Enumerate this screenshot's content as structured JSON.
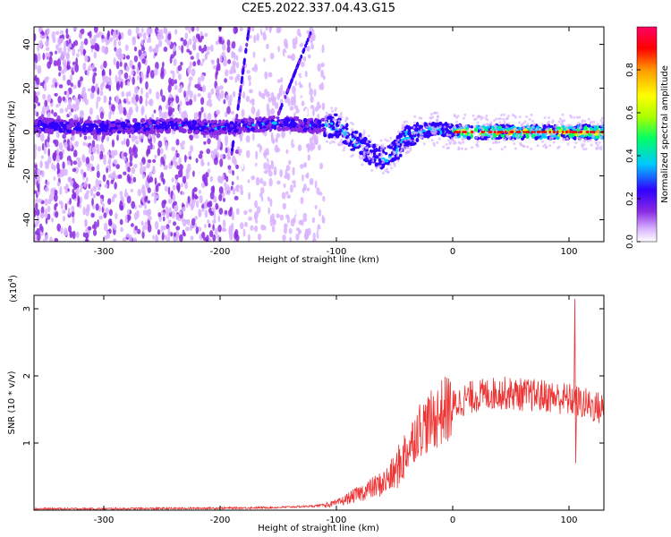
{
  "page": {
    "title": "C2E5.2022.337.04.43.G15"
  },
  "chart_data": [
    {
      "type": "heatmap",
      "xlabel": "Height of straight line (km)",
      "ylabel": "Frequency (Hz)",
      "xlim": [
        -360,
        130
      ],
      "ylim": [
        -50,
        48
      ],
      "xticks": [
        -300,
        -200,
        -100,
        0,
        100
      ],
      "xtick_labels": [
        "-300",
        "-200",
        "-100",
        "0",
        "100"
      ],
      "yticks": [
        -40,
        -20,
        0,
        20,
        40
      ],
      "ytick_labels": [
        "-40",
        "-20",
        "0",
        "20",
        "40"
      ],
      "colorbar": {
        "label": "Normalized spectral amplitude",
        "range": [
          0,
          1
        ],
        "ticks": [
          0.0,
          0.2,
          0.4,
          0.6,
          0.8
        ],
        "tick_labels": [
          "0.0",
          "0.2",
          "0.4",
          "0.6",
          "0.8"
        ],
        "colors": [
          "#ffffff",
          "#d9b3ff",
          "#8a2be2",
          "#3000ff",
          "#00c8ff",
          "#00ff66",
          "#aaff00",
          "#ffff00",
          "#ff9900",
          "#ff0000",
          "#ff0066"
        ]
      },
      "center_line": [
        [
          -360,
          3
        ],
        [
          -300,
          2
        ],
        [
          -250,
          3
        ],
        [
          -200,
          2
        ],
        [
          -180,
          3
        ],
        [
          -150,
          4
        ],
        [
          -120,
          3
        ],
        [
          -100,
          3
        ],
        [
          -90,
          -2
        ],
        [
          -80,
          -6
        ],
        [
          -70,
          -10
        ],
        [
          -60,
          -12
        ],
        [
          -50,
          -9
        ],
        [
          -45,
          -6
        ],
        [
          -40,
          -2
        ],
        [
          -30,
          0
        ],
        [
          -20,
          1
        ],
        [
          -10,
          1
        ],
        [
          0,
          0
        ],
        [
          50,
          0
        ],
        [
          100,
          0
        ],
        [
          130,
          0
        ]
      ],
      "streaks": [
        {
          "x": [
            -190,
            -175
          ],
          "y": [
            -10,
            48
          ]
        },
        {
          "x": [
            -150,
            -120
          ],
          "y": [
            8,
            48
          ]
        }
      ]
    },
    {
      "type": "line",
      "xlabel": "Height of straight line (km)",
      "ylabel": "SNR (10 * v/v)",
      "y_multiplier_label": "(x10",
      "y_multiplier_exp": "4",
      "xlim": [
        -360,
        130
      ],
      "ylim": [
        0,
        3.2
      ],
      "xticks": [
        -300,
        -200,
        -100,
        0,
        100
      ],
      "xtick_labels": [
        "-300",
        "-200",
        "-100",
        "0",
        "100"
      ],
      "yticks": [
        1,
        2,
        3
      ],
      "ytick_labels": [
        "1",
        "2",
        "3"
      ],
      "line_color": "#ee3333",
      "series": [
        {
          "x": [
            -360,
            -300,
            -200,
            -150,
            -120,
            -100,
            -80,
            -60,
            -50,
            -40,
            -30,
            -20,
            -10,
            0,
            10,
            20,
            40,
            60,
            80,
            100,
            110,
            120,
            130
          ],
          "values": [
            0.02,
            0.02,
            0.03,
            0.04,
            0.06,
            0.1,
            0.25,
            0.4,
            0.55,
            0.85,
            1.2,
            1.3,
            1.45,
            1.55,
            1.65,
            1.7,
            1.75,
            1.72,
            1.7,
            1.65,
            1.6,
            1.55,
            1.5
          ]
        }
      ]
    }
  ]
}
